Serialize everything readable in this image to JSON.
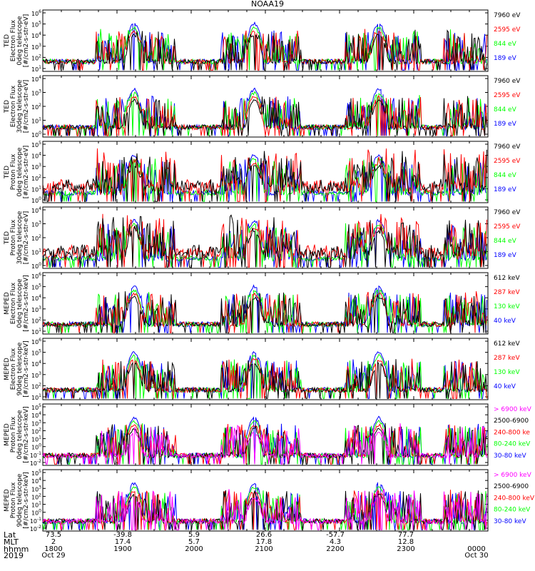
{
  "title": "NOAA19",
  "colors": {
    "blue": "#0000ff",
    "green": "#00ff00",
    "red": "#ff0000",
    "black": "#000000",
    "magenta": "#ff00ff"
  },
  "chart_data": [
    {
      "type": "line",
      "instrument": "TED",
      "ylabel_lines": [
        "TED",
        "Electron Flux",
        "0deg telescope",
        "[#/cm2-s-str-eV]"
      ],
      "ylim": [
        1,
        1000000.0
      ],
      "log": true,
      "ticks": [
        "10^1",
        "10^2",
        "10^3",
        "10^4",
        "10^5",
        "10^6"
      ],
      "legend": [
        {
          "name": "7960 eV",
          "color": "black"
        },
        {
          "name": "2595 eV",
          "color": "red"
        },
        {
          "name": "844 eV",
          "color": "green"
        },
        {
          "name": "189 eV",
          "color": "blue"
        }
      ]
    },
    {
      "type": "line",
      "instrument": "TED",
      "ylabel_lines": [
        "TED",
        "Electron Flux",
        "30deg telescope",
        "[#/cm2-s-str-eV]"
      ],
      "ylim": [
        1,
        10000.0
      ],
      "log": true,
      "ticks": [
        "10^0",
        "10^1",
        "10^2",
        "10^3",
        "10^4"
      ],
      "legend": [
        {
          "name": "7960 eV",
          "color": "black"
        },
        {
          "name": "2595 eV",
          "color": "red"
        },
        {
          "name": "844 eV",
          "color": "green"
        },
        {
          "name": "189 eV",
          "color": "blue"
        }
      ]
    },
    {
      "type": "line",
      "instrument": "TED",
      "ylabel_lines": [
        "TED",
        "Proton Flux",
        "0deg telescope",
        "[#/cm2-s-str-eV]"
      ],
      "ylim": [
        1,
        100000.0
      ],
      "log": true,
      "ticks": [
        "10^0",
        "10^1",
        "10^2",
        "10^3",
        "10^4",
        "10^5"
      ],
      "legend": [
        {
          "name": "7960 eV",
          "color": "black"
        },
        {
          "name": "2595 eV",
          "color": "red"
        },
        {
          "name": "844 eV",
          "color": "green"
        },
        {
          "name": "189 eV",
          "color": "blue"
        }
      ]
    },
    {
      "type": "line",
      "instrument": "TED",
      "ylabel_lines": [
        "TED",
        "Proton Flux",
        "30deg telescope",
        "[#/cm2-s-str-eV]"
      ],
      "ylim": [
        1,
        10000.0
      ],
      "log": true,
      "ticks": [
        "10^0",
        "10^1",
        "10^2",
        "10^3",
        "10^4"
      ],
      "legend": [
        {
          "name": "7960 eV",
          "color": "black"
        },
        {
          "name": "2595 eV",
          "color": "red"
        },
        {
          "name": "844 eV",
          "color": "green"
        },
        {
          "name": "189 eV",
          "color": "blue"
        }
      ]
    },
    {
      "type": "line",
      "instrument": "MEPED",
      "ylabel_lines": [
        "MEPED",
        "Electron Flux",
        "0deg telescope",
        "[#/cm2-s-str-keV]"
      ],
      "ylim": [
        1,
        1000000.0
      ],
      "log": true,
      "ticks": [
        "10^1",
        "10^2",
        "10^3",
        "10^4",
        "10^5",
        "10^6"
      ],
      "legend": [
        {
          "name": "612 keV",
          "color": "black"
        },
        {
          "name": "287 keV",
          "color": "red"
        },
        {
          "name": "130 keV",
          "color": "green"
        },
        {
          "name": "40 keV",
          "color": "blue"
        }
      ]
    },
    {
      "type": "line",
      "instrument": "MEPED",
      "ylabel_lines": [
        "MEPED",
        "Electron Flux",
        "90deg telescope",
        "[#/cm2-s-str-keV]"
      ],
      "ylim": [
        1,
        1000000.0
      ],
      "log": true,
      "ticks": [
        "10^1",
        "10^2",
        "10^3",
        "10^4",
        "10^5",
        "10^6"
      ],
      "legend": [
        {
          "name": "612 keV",
          "color": "black"
        },
        {
          "name": "287 keV",
          "color": "red"
        },
        {
          "name": "130 keV",
          "color": "green"
        },
        {
          "name": "40 keV",
          "color": "blue"
        }
      ]
    },
    {
      "type": "line",
      "instrument": "MEPED",
      "ylabel_lines": [
        "MEPED",
        "Proton Flux",
        "0deg telescope",
        "[#/cm2-s-str-keV]"
      ],
      "ylim": [
        0.01,
        100000.0
      ],
      "log": true,
      "ticks": [
        "10^-2",
        "10^-1",
        "10^0",
        "10^1",
        "10^2",
        "10^3",
        "10^4",
        "10^5"
      ],
      "legend": [
        {
          "name": "> 6900 keV",
          "color": "magenta"
        },
        {
          "name": "2500-6900",
          "color": "black"
        },
        {
          "name": "240-800 ke",
          "color": "red"
        },
        {
          "name": "80-240 keV",
          "color": "green"
        },
        {
          "name": "30-80 keV",
          "color": "blue"
        }
      ]
    },
    {
      "type": "line",
      "instrument": "MEPED",
      "ylabel_lines": [
        "MEPED",
        "Proton Flux",
        "90deg telescope",
        "[#/cm2-s-str-keV]"
      ],
      "ylim": [
        0.01,
        100000.0
      ],
      "log": true,
      "ticks": [
        "10^-2",
        "10^-1",
        "10^0",
        "10^1",
        "10^2",
        "10^3",
        "10^4",
        "10^5"
      ],
      "legend": [
        {
          "name": "> 6900 keV",
          "color": "magenta"
        },
        {
          "name": "2500-6900",
          "color": "black"
        },
        {
          "name": "240-800 keV",
          "color": "red"
        },
        {
          "name": "80-240 keV",
          "color": "green"
        },
        {
          "name": "30-80 keV",
          "color": "blue"
        }
      ]
    }
  ],
  "footer": {
    "labels": [
      "Lat",
      "MLT",
      "hhmm",
      "2019"
    ],
    "columns": [
      {
        "lat": "73.5",
        "mlt": "2",
        "hhmm": "1800",
        "date": "Oct 29"
      },
      {
        "lat": "-39.8",
        "mlt": "17.4",
        "hhmm": "1900",
        "date": ""
      },
      {
        "lat": "5.9",
        "mlt": "5.7",
        "hhmm": "2000",
        "date": ""
      },
      {
        "lat": "26.6",
        "mlt": "17.8",
        "hhmm": "2100",
        "date": ""
      },
      {
        "lat": "-57.7",
        "mlt": "4.3",
        "hhmm": "2200",
        "date": ""
      },
      {
        "lat": "77.7",
        "mlt": "12.8",
        "hhmm": "2300",
        "date": ""
      },
      {
        "lat": "",
        "mlt": "",
        "hhmm": "0000",
        "date": "Oct 30"
      }
    ]
  }
}
